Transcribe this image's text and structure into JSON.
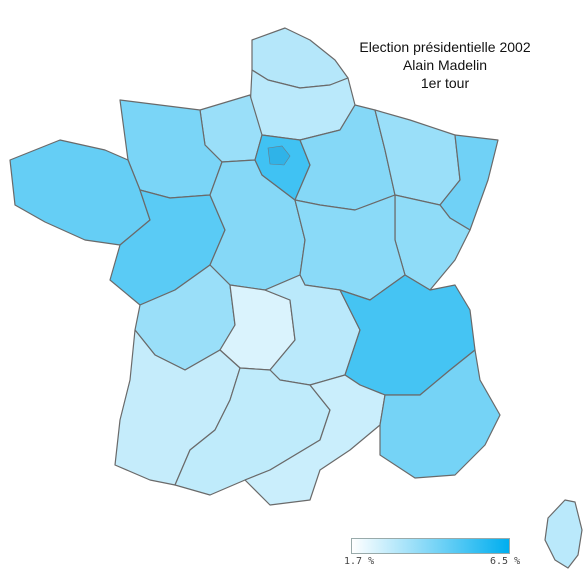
{
  "title": {
    "line1": "Election présidentielle 2002",
    "line2": "Alain Madelin",
    "line3": "1er tour"
  },
  "legend": {
    "min_label": "1.7 %",
    "max_label": "6.5 %",
    "min_value": 1.7,
    "max_value": 6.5,
    "color_low": "#ffffff",
    "color_high": "#00aeef"
  },
  "map": {
    "regions": [
      {
        "id": "nord",
        "value": 3.1
      },
      {
        "id": "picardie",
        "value": 3.0
      },
      {
        "id": "haute-normandie",
        "value": 3.6
      },
      {
        "id": "basse-normandie",
        "value": 4.2
      },
      {
        "id": "bretagne",
        "value": 4.6
      },
      {
        "id": "pays-de-la-loire",
        "value": 4.8
      },
      {
        "id": "centre",
        "value": 4.0
      },
      {
        "id": "ile-de-france",
        "value": 5.3
      },
      {
        "id": "champagne",
        "value": 4.0
      },
      {
        "id": "lorraine",
        "value": 3.6
      },
      {
        "id": "alsace",
        "value": 4.4
      },
      {
        "id": "franche-comte",
        "value": 3.8
      },
      {
        "id": "bourgogne",
        "value": 3.9
      },
      {
        "id": "poitou-charentes",
        "value": 3.6
      },
      {
        "id": "limousin",
        "value": 2.4
      },
      {
        "id": "auvergne",
        "value": 3.0
      },
      {
        "id": "rhone-alpes",
        "value": 5.2
      },
      {
        "id": "aquitaine",
        "value": 2.8
      },
      {
        "id": "midi-pyrenees",
        "value": 2.9
      },
      {
        "id": "languedoc",
        "value": 2.7
      },
      {
        "id": "paca",
        "value": 4.3
      },
      {
        "id": "corse",
        "value": 3.0
      }
    ]
  }
}
